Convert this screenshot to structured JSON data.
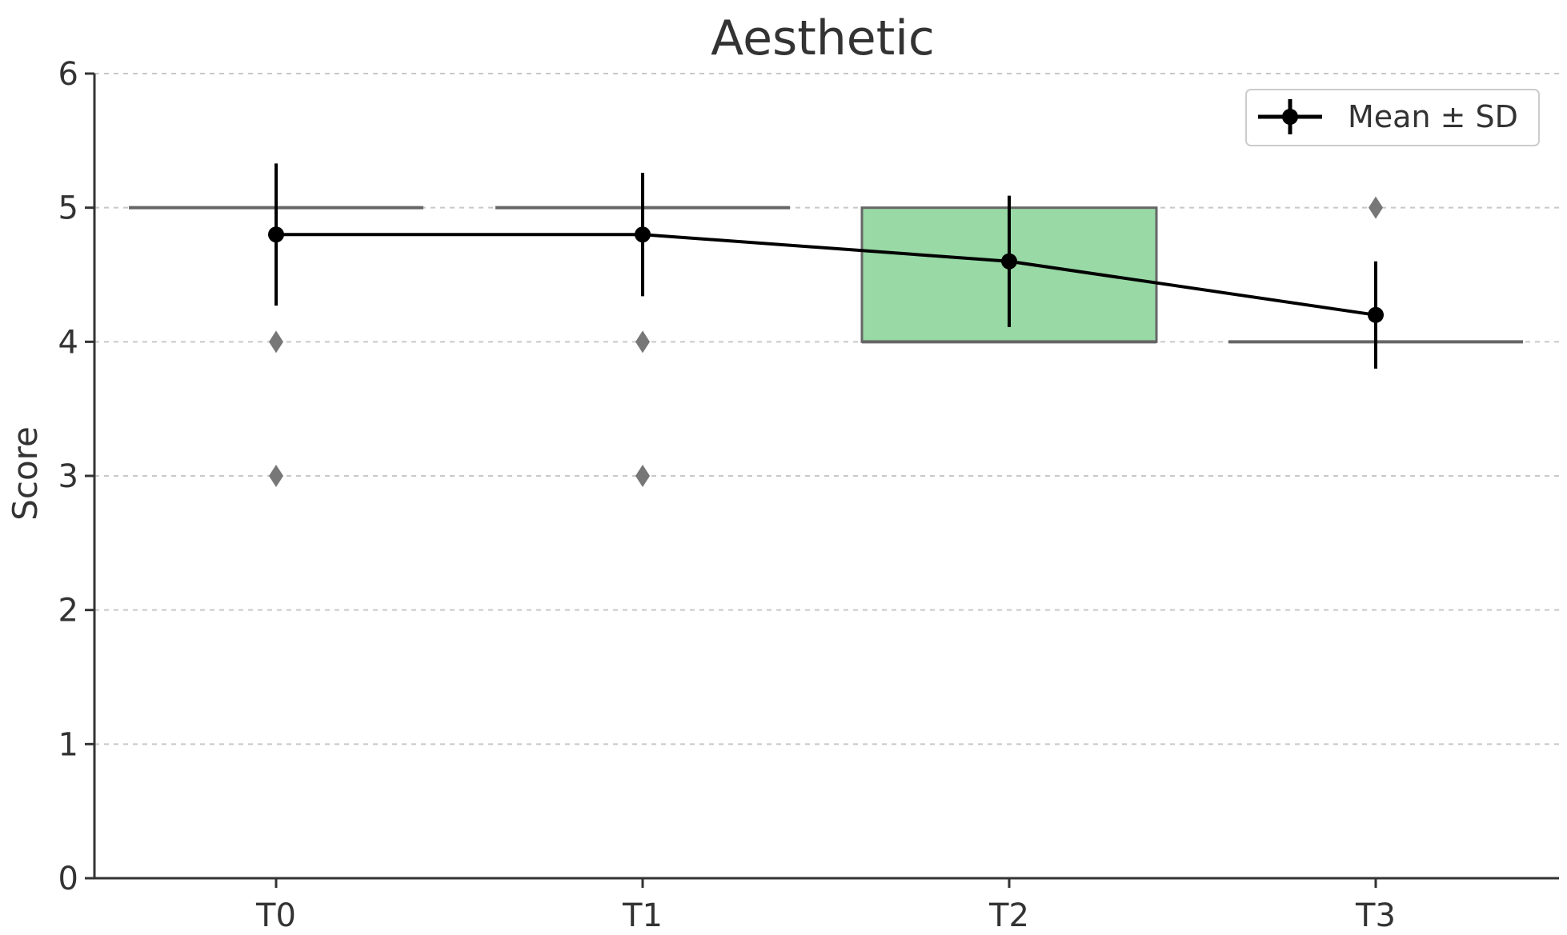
{
  "chart_data": {
    "type": "box",
    "title": "Aesthetic",
    "xlabel": "",
    "ylabel": "Score",
    "categories": [
      "T0",
      "T1",
      "T2",
      "T3"
    ],
    "ylim": [
      0,
      6
    ],
    "yticks": [
      0,
      1,
      2,
      3,
      4,
      5,
      6
    ],
    "grid": true,
    "box_color": "#98d9a6",
    "box_edge_color": "#666666",
    "boxes": [
      {
        "category": "T0",
        "q1": 5,
        "median": 5,
        "q3": 5,
        "whisker_low": 5,
        "whisker_high": 5,
        "outliers": [
          4,
          3
        ]
      },
      {
        "category": "T1",
        "q1": 5,
        "median": 5,
        "q3": 5,
        "whisker_low": 5,
        "whisker_high": 5,
        "outliers": [
          4,
          3
        ]
      },
      {
        "category": "T2",
        "q1": 4,
        "median": 4,
        "q3": 5,
        "whisker_low": 4,
        "whisker_high": 5,
        "outliers": []
      },
      {
        "category": "T3",
        "q1": 4,
        "median": 4,
        "q3": 4,
        "whisker_low": 4,
        "whisker_high": 4,
        "outliers": [
          5
        ]
      }
    ],
    "series": [
      {
        "name": "Mean ± SD",
        "type": "line-errorbar",
        "color": "#000000",
        "mean": [
          4.8,
          4.8,
          4.6,
          4.2
        ],
        "sd": [
          0.53,
          0.46,
          0.49,
          0.4
        ]
      }
    ],
    "legend": {
      "position": "top-right"
    }
  }
}
